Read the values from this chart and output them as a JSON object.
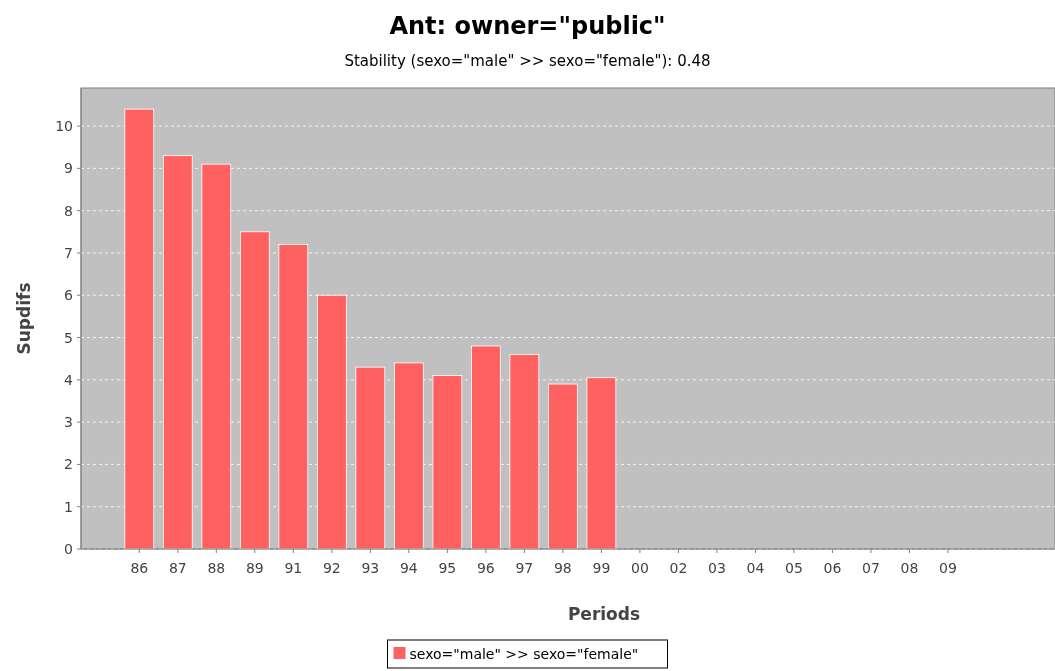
{
  "chart_data": {
    "type": "bar",
    "title": "Ant: owner=\"public\"",
    "subtitle": "Stability (sexo=\"male\" >> sexo=\"female\"): 0.48",
    "xlabel": "Periods",
    "ylabel": "Supdifs",
    "categories": [
      "86",
      "87",
      "88",
      "89",
      "91",
      "92",
      "93",
      "94",
      "95",
      "96",
      "97",
      "98",
      "99",
      "00",
      "02",
      "03",
      "04",
      "05",
      "06",
      "07",
      "08",
      "09"
    ],
    "series": [
      {
        "name": "sexo=\"male\" >> sexo=\"female\"",
        "color": "#ff6060",
        "values": [
          10.4,
          9.3,
          9.1,
          7.5,
          7.2,
          6.0,
          4.3,
          4.4,
          4.1,
          4.8,
          4.6,
          3.9,
          4.05,
          null,
          null,
          null,
          null,
          null,
          null,
          null,
          null,
          null
        ]
      }
    ],
    "ylim": [
      0,
      10.9
    ],
    "yticks": [
      0,
      1,
      2,
      3,
      4,
      5,
      6,
      7,
      8,
      9,
      10
    ],
    "grid": "y",
    "legend": "bottom"
  }
}
